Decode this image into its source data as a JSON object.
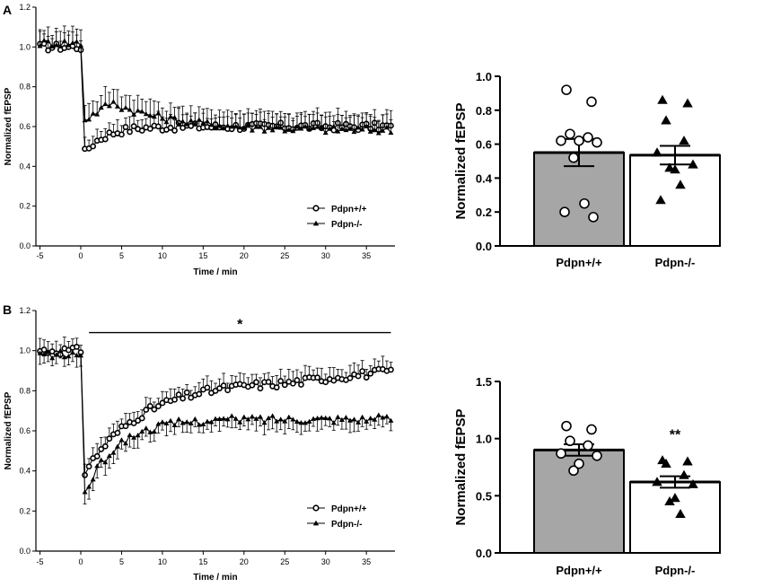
{
  "figure": {
    "panel_a_letter": "A",
    "panel_b_letter": "B"
  },
  "chart_data": [
    {
      "id": "A-time",
      "type": "line",
      "panel": "A",
      "xlabel": "Time / min",
      "ylabel": "Normalized fEPSP",
      "xlim": [
        -5.5,
        38.5
      ],
      "ylim": [
        0,
        1.2
      ],
      "xticks": [
        -5,
        0,
        5,
        10,
        15,
        20,
        25,
        30,
        35
      ],
      "yticks": [
        0.0,
        0.2,
        0.4,
        0.6,
        0.8,
        1.0,
        1.2
      ],
      "tick_decimals": 1,
      "legend_position": "lower-right",
      "series": [
        {
          "name": "Pdpn+/+",
          "marker": "open-circle",
          "baseline": 1.0,
          "min": 0.46,
          "min_time": 0.3,
          "early": 0.53,
          "plateau": 0.6,
          "tau": 2.5,
          "noise": 0.02,
          "error": 0.06
        },
        {
          "name": "Pdpn-/-",
          "marker": "filled-triangle",
          "baseline": 1.02,
          "min": 0.63,
          "min_time": 0.3,
          "peak": 0.72,
          "peak_time": 3.5,
          "plateau": 0.58,
          "noise": 0.02,
          "error": 0.07
        }
      ]
    },
    {
      "id": "A-bar",
      "type": "bar",
      "panel": "A",
      "ylabel": "Normalized fEPSP",
      "ylim": [
        0,
        1.0
      ],
      "yticks": [
        0.0,
        0.2,
        0.4,
        0.6,
        0.8,
        1.0
      ],
      "tick_decimals": 1,
      "categories": [
        "Pdpn+/+",
        "Pdpn-/-"
      ],
      "values": [
        0.55,
        0.535
      ],
      "errors": [
        0.08,
        0.055
      ],
      "colors": [
        "#a6a6a6",
        "#ffffff"
      ],
      "points": [
        [
          0.92,
          0.85,
          0.66,
          0.64,
          0.62,
          0.61,
          0.62,
          0.52,
          0.25,
          0.2,
          0.17
        ],
        [
          0.86,
          0.84,
          0.74,
          0.62,
          0.55,
          0.48,
          0.45,
          0.46,
          0.36,
          0.27
        ]
      ],
      "point_markers": [
        "open-circle",
        "filled-triangle"
      ],
      "annotation": ""
    },
    {
      "id": "B-time",
      "type": "line",
      "panel": "B",
      "xlabel": "Time / min",
      "ylabel": "Normalized fEPSP",
      "xlim": [
        -5.5,
        38.5
      ],
      "ylim": [
        0,
        1.2
      ],
      "xticks": [
        -5,
        0,
        5,
        10,
        15,
        20,
        25,
        30,
        35
      ],
      "yticks": [
        0.0,
        0.2,
        0.4,
        0.6,
        0.8,
        1.0,
        1.2
      ],
      "tick_decimals": 1,
      "legend_position": "lower-right",
      "significance": {
        "label": "*",
        "from": 1,
        "to": 38,
        "y": 1.09
      },
      "series": [
        {
          "name": "Pdpn+/+",
          "marker": "open-circle",
          "baseline": 1.0,
          "min": 0.38,
          "min_time": 0.3,
          "plateau": 0.85,
          "slope_end": 0.9,
          "tau": 7,
          "noise": 0.02,
          "error": 0.05
        },
        {
          "name": "Pdpn-/-",
          "marker": "filled-triangle",
          "baseline": 0.98,
          "min": 0.27,
          "min_time": 0.3,
          "plateau": 0.66,
          "tau": 4,
          "noise": 0.02,
          "error": 0.05
        }
      ]
    },
    {
      "id": "B-bar",
      "type": "bar",
      "panel": "B",
      "ylabel": "Normalized fEPSP",
      "ylim": [
        0,
        1.5
      ],
      "yticks": [
        0.0,
        0.5,
        1.0,
        1.5
      ],
      "tick_decimals": 1,
      "categories": [
        "Pdpn+/+",
        "Pdpn-/-"
      ],
      "values": [
        0.9,
        0.62
      ],
      "errors": [
        0.05,
        0.05
      ],
      "colors": [
        "#a6a6a6",
        "#ffffff"
      ],
      "points": [
        [
          1.11,
          1.08,
          0.98,
          0.94,
          0.87,
          0.85,
          0.78,
          0.72
        ],
        [
          0.81,
          0.8,
          0.78,
          0.68,
          0.62,
          0.6,
          0.48,
          0.45,
          0.34
        ]
      ],
      "point_markers": [
        "open-circle",
        "filled-triangle"
      ],
      "annotation": "**"
    }
  ]
}
